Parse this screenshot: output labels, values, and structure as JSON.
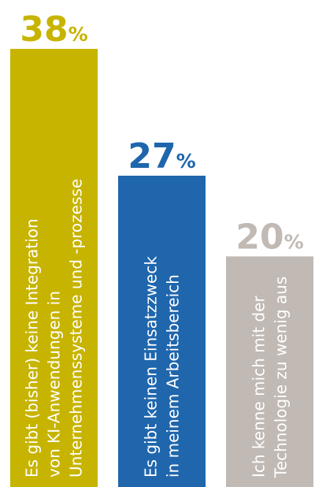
{
  "chart_data": {
    "type": "bar",
    "categories": [
      "Es gibt (bisher) keine Integration von KI-Anwendungen in Unternehmenssysteme und -prozesse",
      "Es gibt keinen Einsatzzweck in meinem Arbeitsbereich",
      "Ich kenne mich mit der Technologie zu wenig aus"
    ],
    "values": [
      38,
      27,
      20
    ],
    "value_labels": [
      "38",
      "27",
      "20"
    ],
    "unit": "%",
    "category_lines": [
      [
        "Es gibt (bisher) keine Integration",
        "von KI-Anwendungen in",
        "Unternehmenssysteme und -prozesse"
      ],
      [
        "Es gibt keinen Einsatzzweck",
        "in meinem Arbeitsbereich"
      ],
      [
        "Ich kenne mich mit der",
        "Technologie zu wenig aus"
      ]
    ],
    "colors": [
      "#c7b400",
      "#1f66ad",
      "#c0b9b4"
    ],
    "ylim": [
      0,
      38
    ]
  }
}
